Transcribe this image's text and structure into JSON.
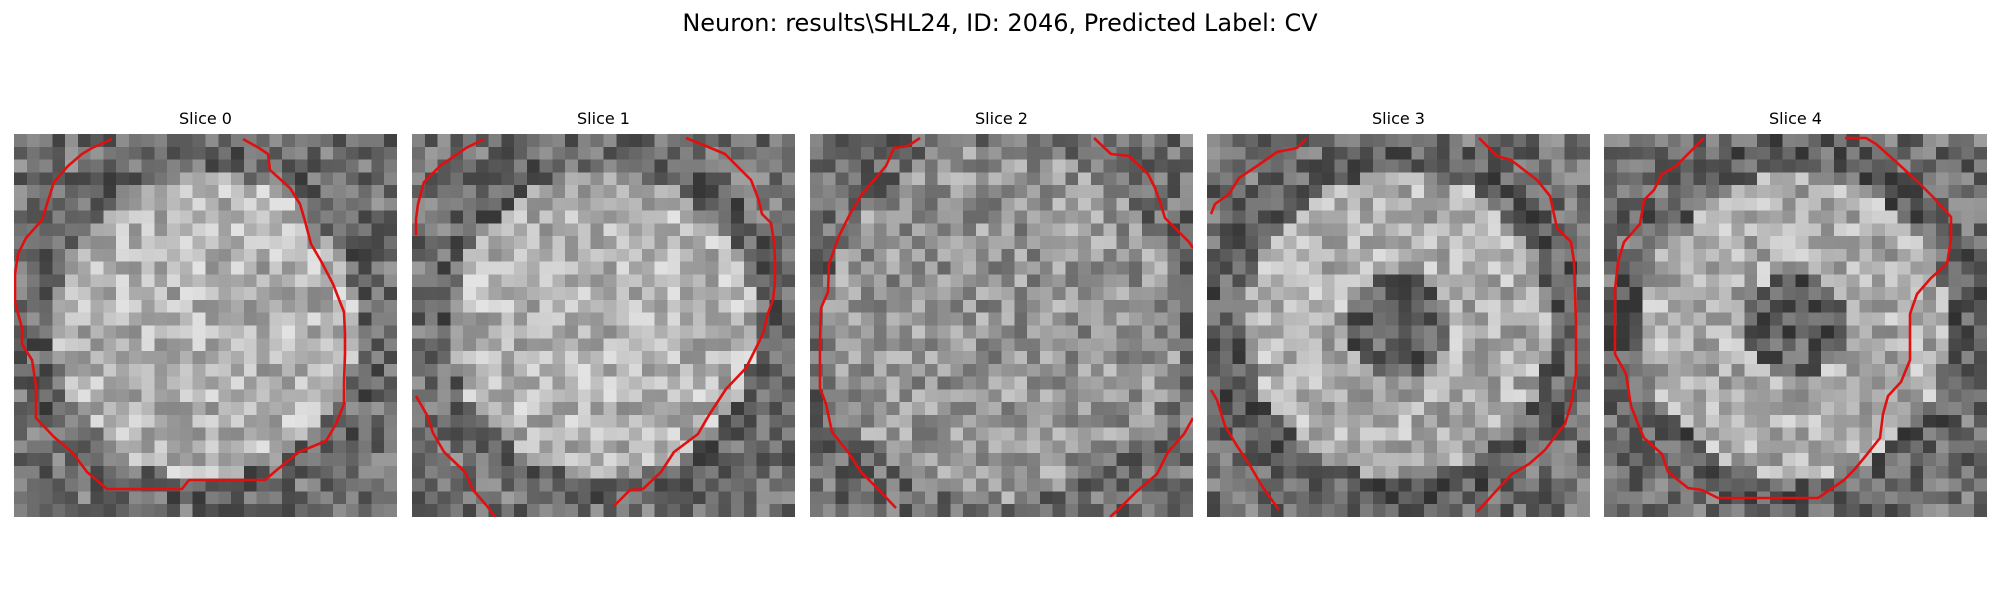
{
  "figure": {
    "title": "Neuron: results\\SHL24, ID: 2046, Predicted Label: CV"
  },
  "slices": [
    {
      "title": "Slice 0",
      "pattern": "bright-disc"
    },
    {
      "title": "Slice 1",
      "pattern": "bright-disc"
    },
    {
      "title": "Slice 2",
      "pattern": "uniform-disc"
    },
    {
      "title": "Slice 3",
      "pattern": "ring-dark-center"
    },
    {
      "title": "Slice 4",
      "pattern": "ring-dark-center"
    }
  ],
  "colors": {
    "contour": "#e01010",
    "background": "#ffffff",
    "colormap": "gray"
  },
  "image_grid": {
    "rows": 30,
    "cols": 30
  }
}
